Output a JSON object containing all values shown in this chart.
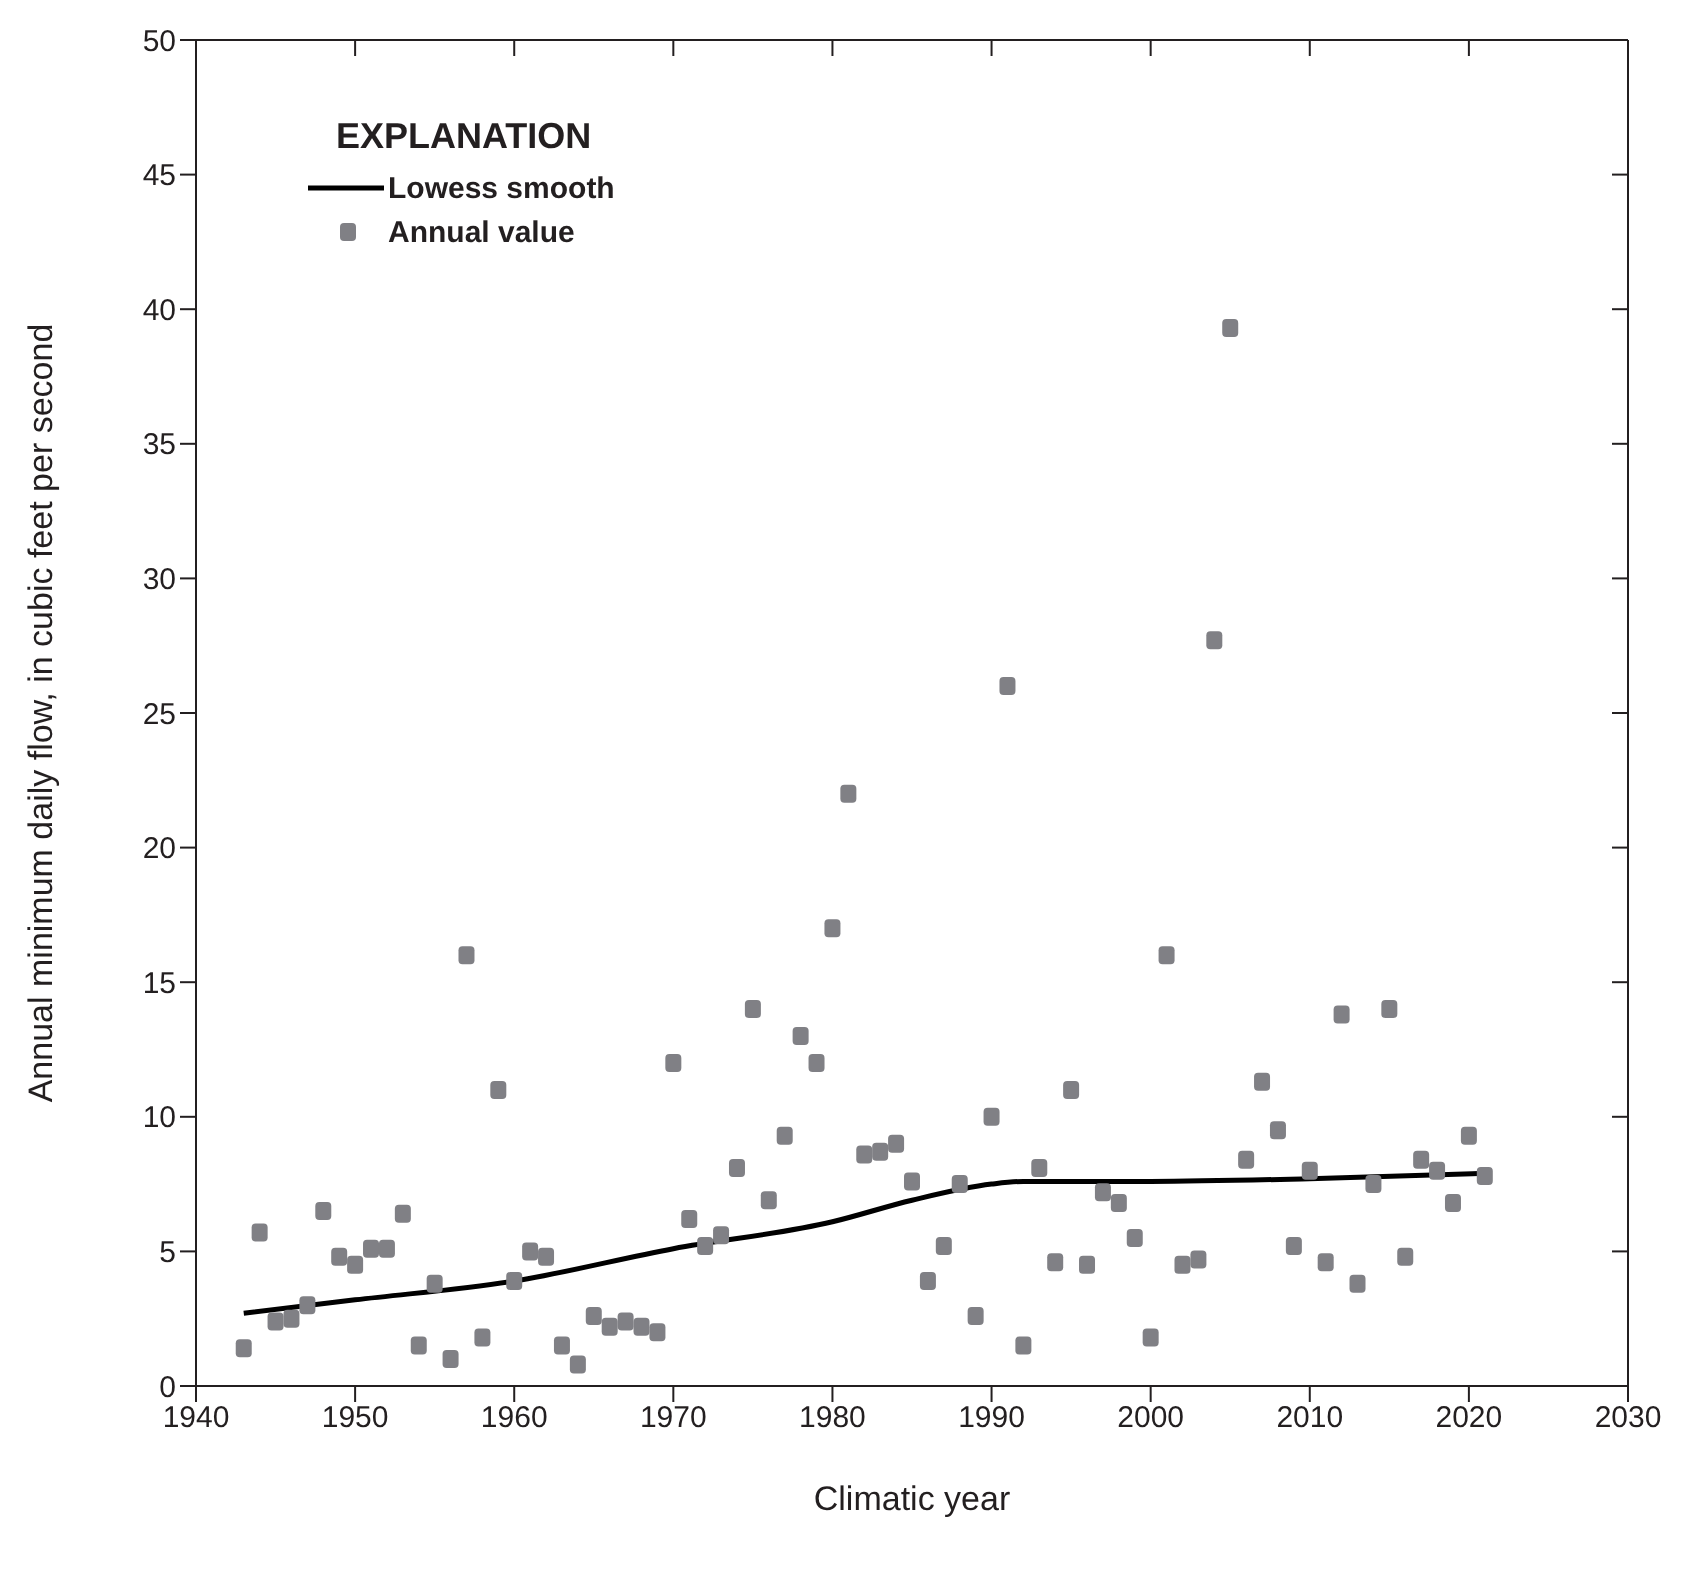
{
  "chart_data": {
    "type": "scatter",
    "xlabel": "Climatic year",
    "ylabel": "Annual minimum daily flow, in cubic feet per second",
    "legend_title": "EXPLANATION",
    "xlim": [
      1940,
      2030
    ],
    "xticks": [
      1940,
      1950,
      1960,
      1970,
      1980,
      1990,
      2000,
      2010,
      2020,
      2030
    ],
    "ylim": [
      0,
      50
    ],
    "yticks": [
      0,
      5,
      10,
      15,
      20,
      25,
      30,
      35,
      40,
      45,
      50
    ],
    "legend": "top left",
    "series": [
      {
        "name": "Lowess smooth",
        "type": "line",
        "color": "#000000",
        "marker": "none",
        "line_style": "solid",
        "x": [
          1943,
          1950,
          1960,
          1970,
          1980,
          1985,
          1990,
          1992,
          2000,
          2010,
          2021
        ],
        "values": [
          2.7,
          3.2,
          3.9,
          5.1,
          6.1,
          6.9,
          7.5,
          7.6,
          7.6,
          7.7,
          7.9
        ]
      },
      {
        "name": "Annual value",
        "color": "#808085",
        "marker": "square",
        "x": [
          1943,
          1944,
          1945,
          1946,
          1947,
          1948,
          1949,
          1950,
          1951,
          1952,
          1953,
          1954,
          1955,
          1956,
          1957,
          1958,
          1959,
          1960,
          1961,
          1962,
          1963,
          1964,
          1965,
          1966,
          1967,
          1968,
          1969,
          1970,
          1971,
          1972,
          1973,
          1974,
          1975,
          1976,
          1977,
          1978,
          1979,
          1980,
          1981,
          1982,
          1983,
          1984,
          1985,
          1986,
          1987,
          1988,
          1989,
          1990,
          1991,
          1992,
          1993,
          1994,
          1995,
          1996,
          1997,
          1998,
          1999,
          2000,
          2001,
          2002,
          2003,
          2004,
          2005,
          2006,
          2007,
          2008,
          2009,
          2010,
          2011,
          2012,
          2013,
          2014,
          2015,
          2016,
          2017,
          2018,
          2019,
          2020,
          2021
        ],
        "values": [
          1.4,
          5.7,
          2.4,
          2.5,
          3.0,
          6.5,
          4.8,
          4.5,
          5.1,
          5.1,
          6.4,
          1.5,
          3.8,
          1.0,
          16.0,
          1.8,
          11.0,
          3.9,
          5.0,
          4.8,
          1.5,
          0.8,
          2.6,
          2.2,
          2.4,
          2.2,
          2.0,
          12.0,
          6.2,
          5.2,
          5.6,
          8.1,
          14.0,
          6.9,
          9.3,
          13.0,
          12.0,
          17.0,
          22.0,
          8.6,
          8.7,
          9.0,
          7.6,
          3.9,
          5.2,
          7.5,
          2.6,
          10.0,
          26.0,
          1.5,
          8.1,
          4.6,
          11.0,
          4.5,
          7.2,
          6.8,
          5.5,
          1.8,
          16.0,
          4.5,
          4.7,
          27.7,
          39.3,
          8.4,
          11.3,
          9.5,
          5.2,
          8.0,
          4.6,
          13.8,
          3.8,
          7.5,
          14.0,
          4.8,
          8.4,
          8.0,
          6.8,
          9.3,
          7.8
        ]
      }
    ]
  }
}
